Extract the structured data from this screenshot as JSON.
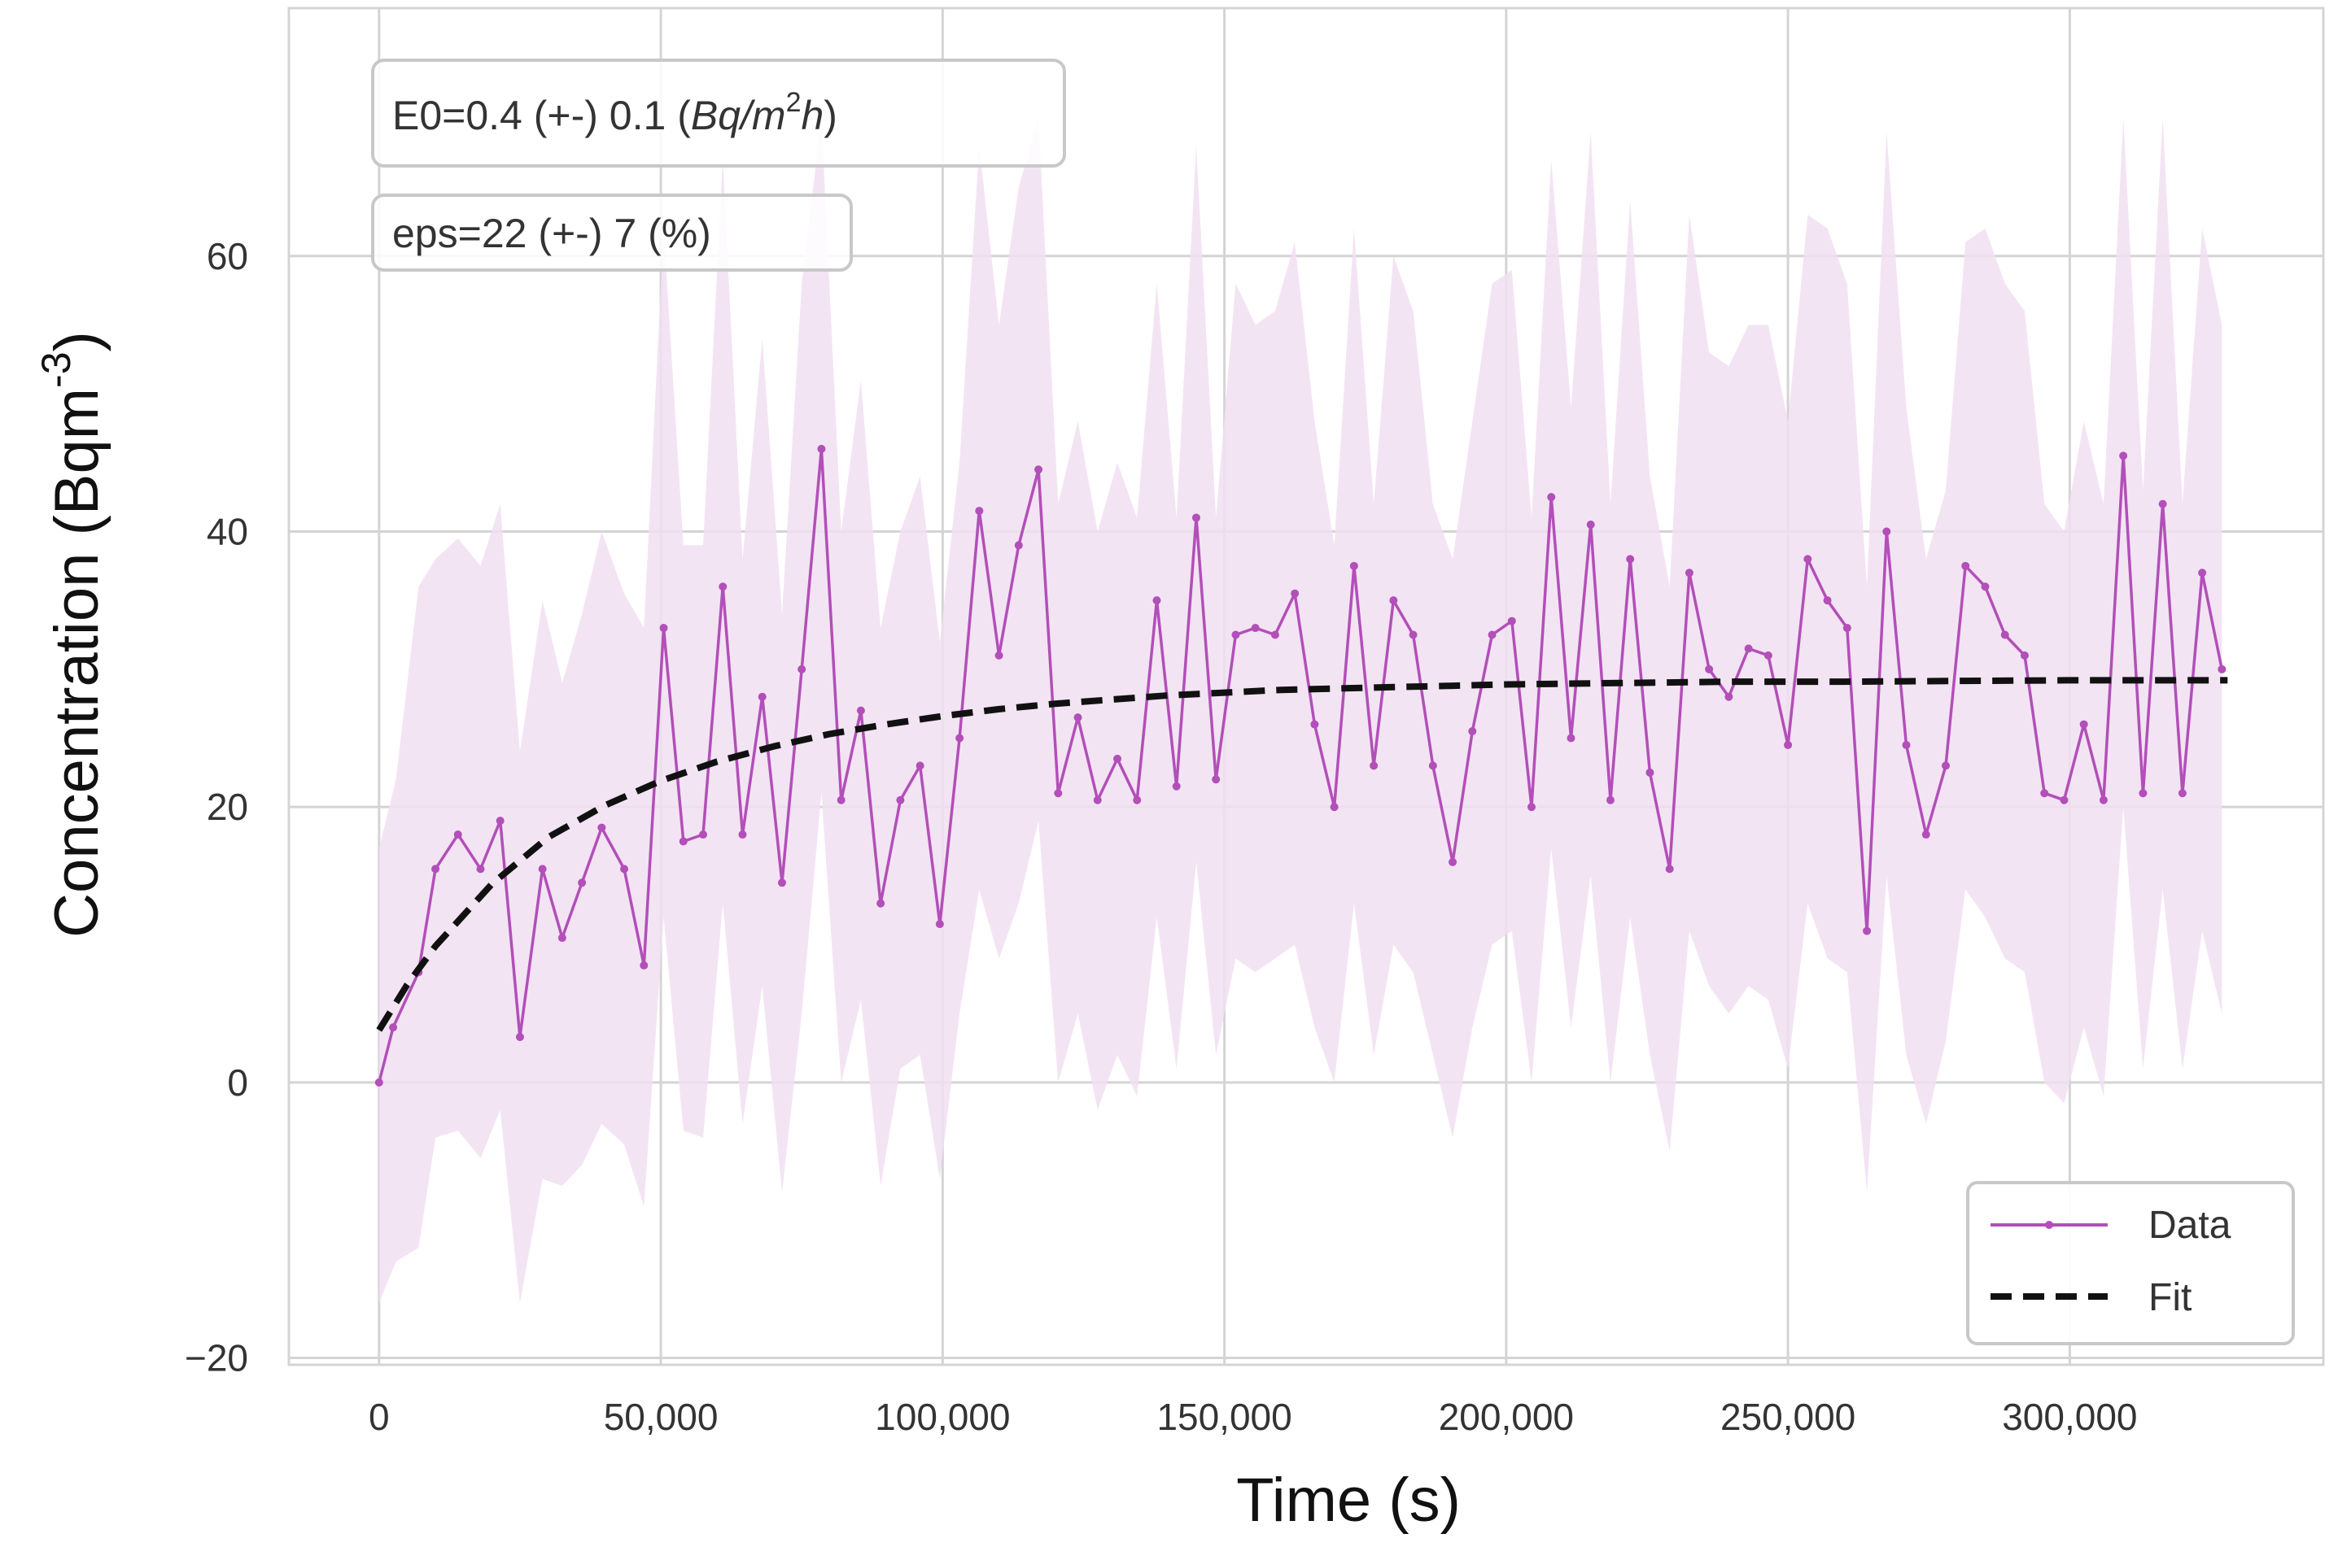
{
  "chart_data": {
    "type": "line",
    "xlabel": "Time (s)",
    "ylabel_base": "Concentration (Bqm",
    "ylabel_sup": "-3",
    "ylabel_close": ")",
    "xlim": [
      -16000,
      345000
    ],
    "ylim": [
      -20.5,
      78
    ],
    "xticks": [
      0,
      50000,
      100000,
      150000,
      200000,
      250000,
      300000
    ],
    "xtick_labels": [
      "0",
      "50,000",
      "100,000",
      "150,000",
      "200,000",
      "250,000",
      "300,000"
    ],
    "yticks": [
      -20,
      0,
      20,
      40,
      60
    ],
    "ytick_labels": [
      "−20",
      "0",
      "20",
      "40",
      "60"
    ],
    "grid": true,
    "legend_position": "lower-right",
    "colors": {
      "data": "#b24fb8",
      "band": "#f1dff2",
      "fit": "#111111",
      "grid": "#d4d4d4",
      "frame": "#d4d4d4"
    },
    "annotations": [
      {
        "text": "E0=0.4 (+-) 0.1 (Bq/m²h)",
        "prefix": "E0=0.4 (+-) 0.1 (",
        "italic": "Bq/m",
        "sup": "2",
        "italic2": "h",
        "suffix": ")"
      },
      {
        "text": "eps=22 (+-) 7 (%)"
      }
    ],
    "series": [
      {
        "name": "Data",
        "style": "line-with-markers",
        "x": [
          0,
          2500,
          7000,
          10000,
          14000,
          18000,
          21500,
          25000,
          29000,
          32500,
          36000,
          39500,
          43500,
          47000,
          50500,
          54000,
          57500,
          61000,
          64500,
          68000,
          71500,
          75000,
          78500,
          82000,
          85500,
          89000,
          92500,
          96000,
          99500,
          103000,
          106500,
          110000,
          113500,
          117000,
          120500,
          124000,
          127500,
          131000,
          134500,
          138000,
          141500,
          145000,
          148500,
          152000,
          155500,
          159000,
          162500,
          166000,
          169500,
          173000,
          176500,
          180000,
          183500,
          187000,
          190500,
          194000,
          197500,
          201000,
          204500,
          208000,
          211500,
          215000,
          218500,
          222000,
          225500,
          229000,
          232500,
          236000,
          239500,
          243000,
          246500,
          250000,
          253500,
          257000,
          260500,
          264000,
          267500,
          271000,
          274500,
          278000,
          281500,
          285000,
          288500,
          292000,
          295500,
          299000,
          302500,
          306000,
          309500,
          313000,
          316500,
          320000,
          323500,
          327000
        ],
        "y": [
          0,
          4,
          8,
          15.5,
          18,
          15.5,
          19,
          3.3,
          15.5,
          10.5,
          14.5,
          18.5,
          15.5,
          8.5,
          33,
          17.5,
          18,
          36,
          18,
          28,
          14.5,
          30,
          46,
          20.5,
          27,
          13,
          20.5,
          23,
          11.5,
          25,
          41.5,
          31,
          39,
          44.5,
          21,
          26.5,
          20.5,
          23.5,
          20.5,
          35,
          21.5,
          41,
          22,
          32.5,
          33,
          32.5,
          35.5,
          26,
          20,
          37.5,
          23,
          35,
          32.5,
          23,
          16,
          25.5,
          32.5,
          33.5,
          20,
          42.5,
          25,
          40.5,
          20.5,
          38,
          22.5,
          15.5,
          37,
          30,
          28,
          31.5,
          31,
          24.5,
          38,
          35,
          33,
          11,
          40,
          24.5,
          18,
          23,
          37.5,
          36,
          32.5,
          31,
          21,
          20.5,
          26,
          20.5,
          45.5,
          21,
          42,
          21,
          37,
          30
        ]
      },
      {
        "name": "Fit",
        "style": "dashed",
        "x": [
          0,
          5000,
          10000,
          20000,
          30000,
          40000,
          50000,
          60000,
          70000,
          80000,
          90000,
          100000,
          110000,
          120000,
          130000,
          140000,
          150000,
          160000,
          170000,
          180000,
          190000,
          200000,
          220000,
          240000,
          260000,
          280000,
          300000,
          320000,
          328000
        ],
        "y": [
          3.8,
          7.1,
          9.9,
          14.4,
          17.8,
          20.1,
          21.9,
          23.3,
          24.4,
          25.3,
          26.0,
          26.6,
          27.1,
          27.5,
          27.8,
          28.1,
          28.3,
          28.5,
          28.6,
          28.7,
          28.8,
          28.9,
          29.0,
          29.1,
          29.1,
          29.15,
          29.2,
          29.2,
          29.2
        ]
      }
    ],
    "band": {
      "x": [
        0,
        3000,
        7000,
        10000,
        14000,
        18000,
        21500,
        25000,
        29000,
        32500,
        36000,
        39500,
        43500,
        47000,
        50500,
        54000,
        57500,
        61000,
        64500,
        68000,
        71500,
        75000,
        78500,
        82000,
        85500,
        89000,
        92500,
        96000,
        99500,
        103000,
        106500,
        110000,
        113500,
        117000,
        120500,
        124000,
        127500,
        131000,
        134500,
        138000,
        141500,
        145000,
        148500,
        152000,
        155500,
        159000,
        162500,
        166000,
        169500,
        173000,
        176500,
        180000,
        183500,
        187000,
        190500,
        194000,
        197500,
        201000,
        204500,
        208000,
        211500,
        215000,
        218500,
        222000,
        225500,
        229000,
        232500,
        236000,
        239500,
        243000,
        246500,
        250000,
        253500,
        257000,
        260500,
        264000,
        267500,
        271000,
        274500,
        278000,
        281500,
        285000,
        288500,
        292000,
        295500,
        299000,
        302500,
        306000,
        309500,
        313000,
        316500,
        320000,
        323500,
        327000
      ],
      "upper": [
        17,
        22,
        36,
        38,
        39.5,
        37.5,
        42,
        24,
        35,
        29,
        34,
        40,
        35.5,
        33,
        62,
        39,
        39,
        67,
        38,
        54,
        34,
        58,
        70,
        40,
        51,
        33,
        40,
        44,
        32,
        45,
        68,
        55,
        65,
        70,
        42,
        48,
        40,
        45,
        41,
        58,
        41,
        68,
        41,
        58,
        55,
        56,
        61,
        48,
        39,
        62,
        42,
        60,
        56,
        42,
        38,
        48,
        58,
        59,
        41,
        67,
        49,
        69,
        42,
        64,
        44,
        36,
        63,
        53,
        52,
        55,
        55,
        48,
        63,
        62,
        58,
        36,
        69,
        49,
        38,
        43,
        61,
        62,
        58,
        56,
        42,
        40,
        48,
        42,
        70,
        43,
        70,
        42,
        62,
        55
      ],
      "lower": [
        -16,
        -13,
        -12,
        -4,
        -3.5,
        -5.5,
        -2,
        -16,
        -7,
        -7.5,
        -6,
        -3,
        -4.5,
        -9,
        12,
        -3.5,
        -4,
        13,
        -3,
        7,
        -8,
        5,
        21,
        0,
        6,
        -7.5,
        1,
        2,
        -7,
        5,
        14,
        9,
        13,
        19,
        0,
        5,
        -2,
        2,
        -1,
        12,
        1,
        16,
        2,
        9,
        8,
        9,
        10,
        4,
        0,
        13,
        2,
        10,
        8,
        2,
        -4,
        4,
        10,
        11,
        0,
        17,
        4,
        15,
        0,
        12,
        2,
        -5,
        11,
        7,
        5,
        7,
        6,
        1,
        13,
        9,
        8,
        -8,
        15,
        2,
        -3,
        3,
        14,
        12,
        9,
        8,
        0,
        -1.5,
        4,
        -1,
        20,
        1,
        14,
        1,
        11,
        5
      ]
    }
  }
}
